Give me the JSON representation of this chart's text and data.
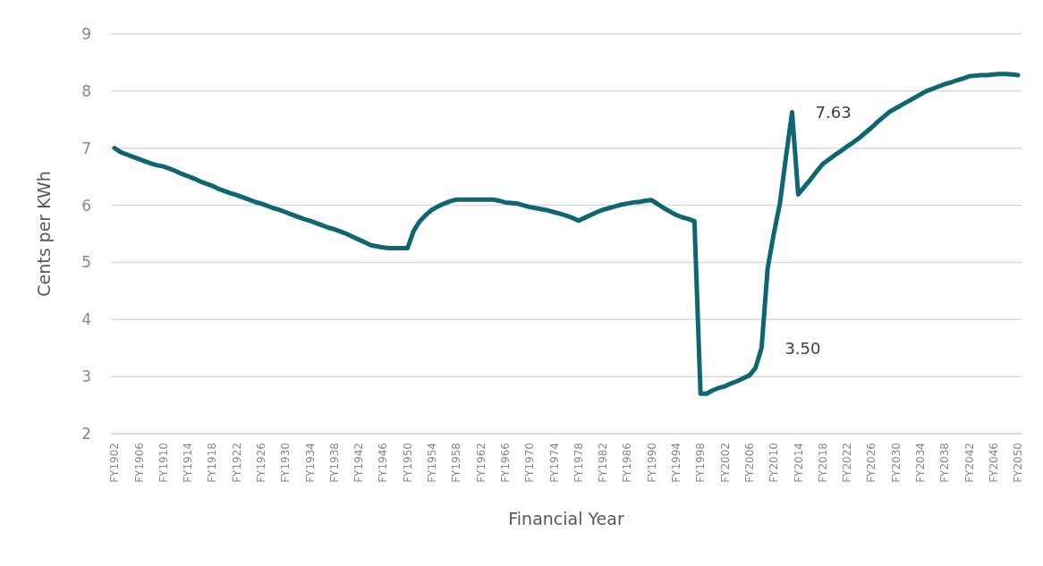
{
  "chart_data": {
    "type": "line",
    "xlabel": "Financial Year",
    "ylabel": "Cents per KWh",
    "categories": [
      "FY1902",
      null,
      null,
      null,
      "FY1906",
      null,
      null,
      null,
      "FY1910",
      null,
      null,
      null,
      "FY1914",
      null,
      null,
      null,
      "FY1918",
      null,
      null,
      null,
      "FY1922",
      null,
      null,
      null,
      "FY1926",
      null,
      null,
      null,
      "FY1930",
      null,
      null,
      null,
      "FY1934",
      null,
      null,
      null,
      "FY1938",
      null,
      null,
      null,
      "FY1942",
      null,
      null,
      null,
      "FY1946",
      null,
      null,
      null,
      "FY1950",
      null,
      null,
      null,
      "FY1954",
      null,
      null,
      null,
      "FY1958",
      null,
      null,
      null,
      "FY1962",
      null,
      null,
      null,
      "FY1966",
      null,
      null,
      null,
      "FY1970",
      null,
      null,
      null,
      "FY1974",
      null,
      null,
      null,
      "FY1978",
      null,
      null,
      null,
      "FY1982",
      null,
      null,
      null,
      "FY1986",
      null,
      null,
      null,
      "FY1990",
      null,
      null,
      null,
      "FY1994",
      null,
      null,
      null,
      "FY1998",
      null,
      null,
      null,
      "FY2002",
      null,
      null,
      null,
      "FY2006",
      null,
      null,
      null,
      "FY2010",
      null,
      null,
      null,
      "FY2014",
      null,
      null,
      null,
      "FY2018",
      null,
      null,
      null,
      "FY2022",
      null,
      null,
      null,
      "FY2026",
      null,
      null,
      null,
      "FY2030",
      null,
      null,
      null,
      "FY2034",
      null,
      null,
      null,
      "FY2038",
      null,
      null,
      null,
      "FY2042",
      null,
      null,
      null,
      "FY2046",
      null,
      null,
      null,
      "FY2050"
    ],
    "ylim": [
      2,
      9
    ],
    "yticks": [
      2,
      3,
      4,
      5,
      6,
      7,
      8,
      9
    ],
    "grid": "y",
    "marker": "none",
    "line_style": "solid",
    "series": [
      {
        "color": "#0e6670",
        "values": [
          7.0,
          6.93,
          6.89,
          6.85,
          6.81,
          6.77,
          6.73,
          6.7,
          6.68,
          6.64,
          6.6,
          6.55,
          6.51,
          6.47,
          6.42,
          6.38,
          6.34,
          6.29,
          6.25,
          6.21,
          6.18,
          6.14,
          6.1,
          6.06,
          6.03,
          5.99,
          5.95,
          5.92,
          5.88,
          5.84,
          5.8,
          5.76,
          5.73,
          5.69,
          5.65,
          5.61,
          5.58,
          5.54,
          5.5,
          5.45,
          5.4,
          5.35,
          5.3,
          5.28,
          5.26,
          5.25,
          5.25,
          5.25,
          5.25,
          5.55,
          5.72,
          5.83,
          5.92,
          5.98,
          6.03,
          6.07,
          6.1,
          6.1,
          6.1,
          6.1,
          6.1,
          6.1,
          6.1,
          6.08,
          6.05,
          6.04,
          6.03,
          6.0,
          5.97,
          5.95,
          5.93,
          5.91,
          5.88,
          5.85,
          5.82,
          5.78,
          5.73,
          5.78,
          5.83,
          5.88,
          5.92,
          5.95,
          5.98,
          6.01,
          6.03,
          6.05,
          6.06,
          6.08,
          6.09,
          6.02,
          5.95,
          5.89,
          5.83,
          5.79,
          5.76,
          5.72,
          2.7,
          2.7,
          2.76,
          2.8,
          2.83,
          2.88,
          2.92,
          2.97,
          3.02,
          3.15,
          3.5,
          4.9,
          5.5,
          6.03,
          6.85,
          7.63,
          6.19,
          6.32,
          6.45,
          6.59,
          6.72,
          6.8,
          6.88,
          6.95,
          7.03,
          7.1,
          7.18,
          7.27,
          7.36,
          7.46,
          7.55,
          7.64,
          7.7,
          7.76,
          7.82,
          7.88,
          7.94,
          8.0,
          8.04,
          8.08,
          8.12,
          8.15,
          8.19,
          8.22,
          8.26,
          8.27,
          8.28,
          8.28,
          8.29,
          8.3,
          8.3,
          8.29,
          8.28
        ],
        "value_labels": [
          null,
          null,
          null,
          null,
          null,
          null,
          null,
          null,
          null,
          null,
          null,
          null,
          null,
          null,
          null,
          null,
          null,
          null,
          null,
          null,
          null,
          null,
          null,
          null,
          null,
          null,
          null,
          null,
          null,
          null,
          null,
          null,
          null,
          null,
          null,
          null,
          null,
          null,
          null,
          null,
          null,
          null,
          null,
          null,
          null,
          null,
          null,
          null,
          null,
          null,
          null,
          null,
          null,
          null,
          null,
          null,
          null,
          null,
          null,
          null,
          null,
          null,
          null,
          null,
          null,
          null,
          null,
          null,
          null,
          null,
          null,
          null,
          null,
          null,
          null,
          null,
          null,
          null,
          null,
          null,
          null,
          null,
          null,
          null,
          null,
          null,
          null,
          null,
          null,
          null,
          null,
          null,
          null,
          null,
          null,
          null,
          null,
          null,
          null,
          null,
          null,
          null,
          null,
          null,
          null,
          null,
          "3.50",
          null,
          null,
          null,
          null,
          "7.63",
          null,
          null,
          null,
          null,
          null,
          null,
          null,
          null,
          null,
          null,
          null,
          null,
          null,
          null,
          null,
          null,
          null,
          null,
          null,
          null,
          null,
          null,
          null,
          null,
          null,
          null,
          null,
          null,
          null,
          null,
          null,
          null,
          null,
          null,
          null,
          null,
          null
        ]
      }
    ]
  }
}
